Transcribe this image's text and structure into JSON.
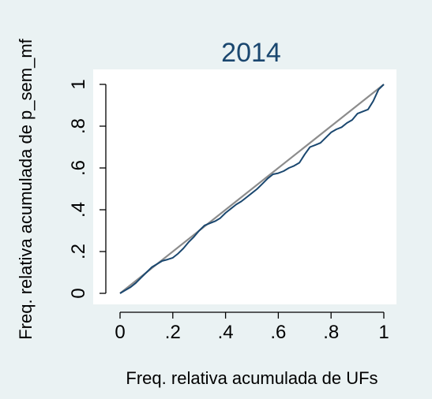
{
  "chart_data": {
    "type": "line",
    "title": "2014",
    "xlabel": "Freq. relativa acumulada de UFs",
    "ylabel": "Freq. relativa acumulada de p_sem_mf",
    "xlim": [
      0,
      1
    ],
    "ylim": [
      0,
      1
    ],
    "x_ticks": [
      "0",
      ".2",
      ".4",
      ".6",
      ".8",
      "1"
    ],
    "y_ticks": [
      "0",
      ".2",
      ".4",
      ".6",
      ".8",
      "1"
    ],
    "grid": false,
    "legend": "none",
    "colors": {
      "background": "#eaf2f3",
      "plot_area": "#ffffff",
      "title": "#1a476f",
      "curve": "#1a476f",
      "equality_line": "#8c8c8c"
    },
    "series": [
      {
        "values": [
          [
            0,
            0
          ],
          [
            0.02,
            0.015
          ],
          [
            0.04,
            0.03
          ],
          [
            0.06,
            0.05
          ],
          [
            0.08,
            0.075
          ],
          [
            0.1,
            0.1
          ],
          [
            0.12,
            0.125
          ],
          [
            0.14,
            0.14
          ],
          [
            0.16,
            0.155
          ],
          [
            0.18,
            0.162
          ],
          [
            0.2,
            0.17
          ],
          [
            0.22,
            0.19
          ],
          [
            0.24,
            0.215
          ],
          [
            0.26,
            0.245
          ],
          [
            0.28,
            0.27
          ],
          [
            0.3,
            0.3
          ],
          [
            0.32,
            0.325
          ],
          [
            0.34,
            0.335
          ],
          [
            0.36,
            0.345
          ],
          [
            0.38,
            0.36
          ],
          [
            0.4,
            0.385
          ],
          [
            0.42,
            0.405
          ],
          [
            0.44,
            0.425
          ],
          [
            0.46,
            0.44
          ],
          [
            0.48,
            0.46
          ],
          [
            0.5,
            0.48
          ],
          [
            0.52,
            0.5
          ],
          [
            0.54,
            0.525
          ],
          [
            0.56,
            0.55
          ],
          [
            0.58,
            0.57
          ],
          [
            0.6,
            0.575
          ],
          [
            0.62,
            0.585
          ],
          [
            0.64,
            0.6
          ],
          [
            0.66,
            0.61
          ],
          [
            0.68,
            0.625
          ],
          [
            0.7,
            0.665
          ],
          [
            0.72,
            0.7
          ],
          [
            0.74,
            0.71
          ],
          [
            0.76,
            0.72
          ],
          [
            0.78,
            0.745
          ],
          [
            0.8,
            0.77
          ],
          [
            0.82,
            0.785
          ],
          [
            0.84,
            0.795
          ],
          [
            0.86,
            0.815
          ],
          [
            0.88,
            0.83
          ],
          [
            0.9,
            0.86
          ],
          [
            0.92,
            0.87
          ],
          [
            0.94,
            0.88
          ],
          [
            0.96,
            0.92
          ],
          [
            0.98,
            0.975
          ],
          [
            1.0,
            1.0
          ]
        ]
      }
    ],
    "reference_line": [
      [
        0,
        0
      ],
      [
        1,
        1
      ]
    ]
  }
}
